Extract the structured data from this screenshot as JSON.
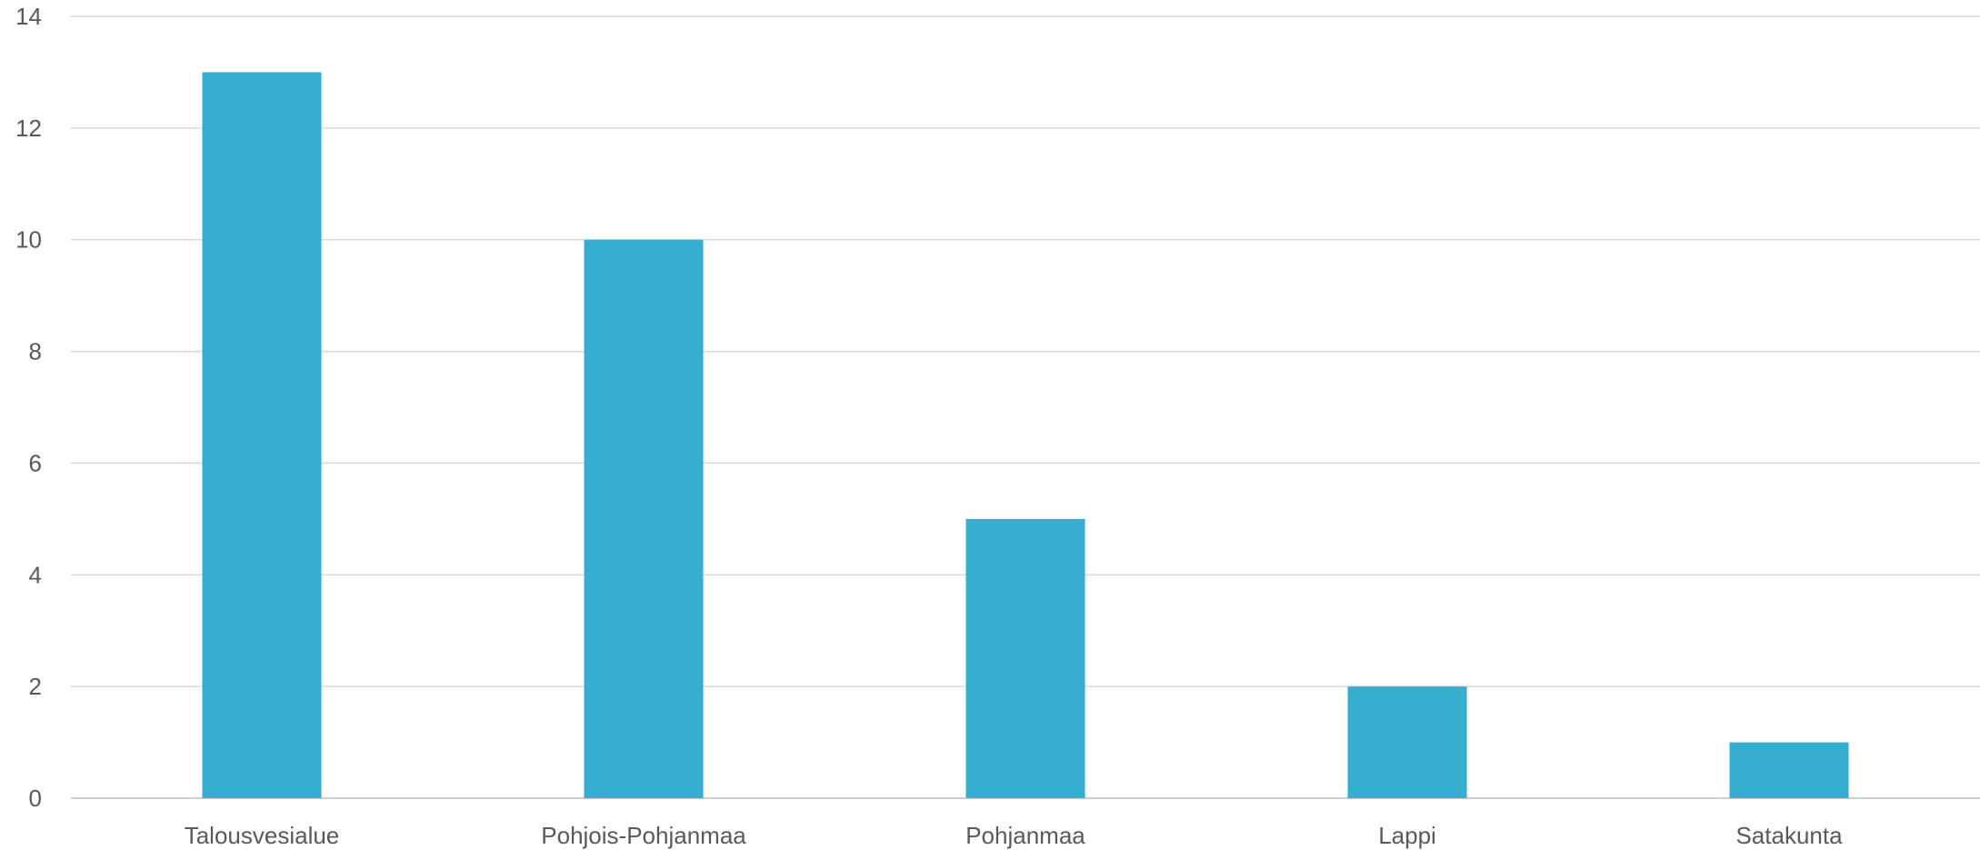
{
  "chart_data": {
    "type": "bar",
    "categories": [
      "Talousvesialue",
      "Pohjois-Pohjanmaa",
      "Pohjanmaa",
      "Lappi",
      "Satakunta"
    ],
    "series": [
      {
        "values": [
          13,
          10,
          5,
          2,
          1
        ],
        "color": "#36aed0"
      }
    ],
    "ylim": [
      0,
      14
    ],
    "yticks": [
      0,
      2,
      4,
      6,
      8,
      10,
      12,
      14
    ],
    "grid": true,
    "legend": "none"
  }
}
